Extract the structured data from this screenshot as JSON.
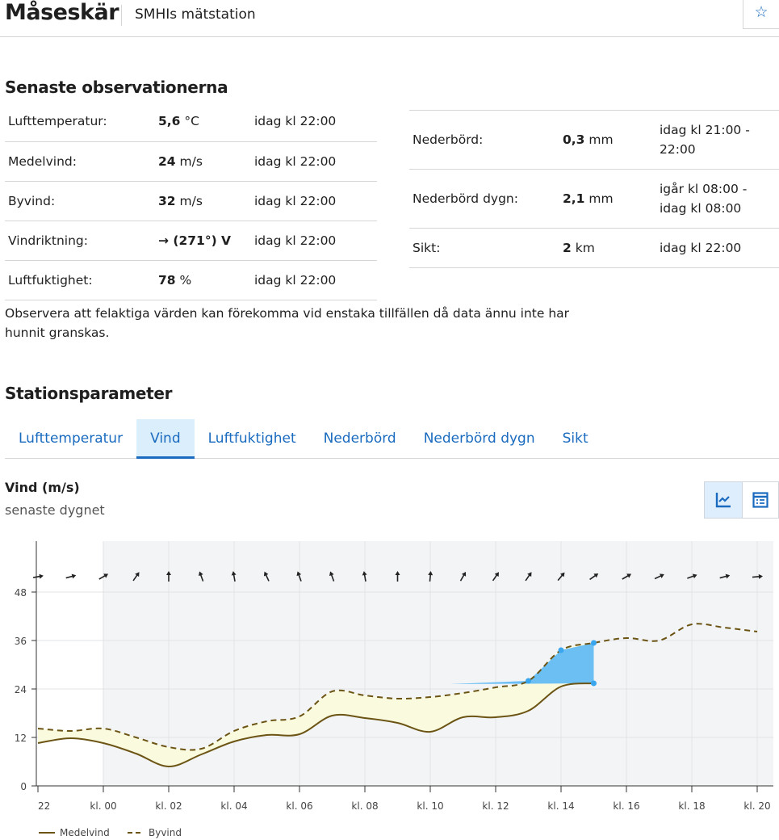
{
  "header": {
    "title": "Måseskär",
    "subtitle": "SMHIs mätstation",
    "favorite_icon": "star-icon"
  },
  "observations": {
    "heading": "Senaste observationerna",
    "left": [
      {
        "label": "Lufttemperatur:",
        "value": "5,6",
        "unit": " °C",
        "time": "idag kl 22:00"
      },
      {
        "label": "Medelvind:",
        "value": "24",
        "unit": " m/s",
        "time": "idag kl 22:00"
      },
      {
        "label": "Byvind:",
        "value": "32",
        "unit": " m/s",
        "time": "idag kl 22:00"
      },
      {
        "label": "Vindriktning:",
        "value": "→ (271°) V",
        "unit": "",
        "time": "idag kl 22:00"
      },
      {
        "label": "Luftfuktighet:",
        "value": "78",
        "unit": " %",
        "time": "idag kl 22:00"
      }
    ],
    "right": [
      {
        "label": "Nederbörd:",
        "value": "0,3",
        "unit": " mm",
        "time": "idag kl 21:00 - 22:00"
      },
      {
        "label": "Nederbörd dygn:",
        "value": "2,1",
        "unit": " mm",
        "time": "igår kl 08:00 - idag kl 08:00"
      },
      {
        "label": "Sikt:",
        "value": "2",
        "unit": " km",
        "time": "idag kl 22:00"
      }
    ],
    "note": "Observera att felaktiga värden kan förekomma vid enstaka tillfällen då data ännu inte har hunnit granskas."
  },
  "station": {
    "heading": "Stationsparameter",
    "tabs": [
      "Lufttemperatur",
      "Vind",
      "Luftfuktighet",
      "Nederbörd",
      "Nederbörd dygn",
      "Sikt"
    ],
    "active_tab": "Vind",
    "chart_title": "Vind (m/s)",
    "chart_subtitle": "senaste dygnet",
    "view_buttons": [
      "chart-view",
      "table-view"
    ]
  },
  "chart_data": {
    "type": "line",
    "title": "Vind (m/s)",
    "x": [
      "22",
      "23",
      "00",
      "01",
      "02",
      "03",
      "04",
      "05",
      "06",
      "07",
      "08",
      "09",
      "10",
      "11",
      "12",
      "13",
      "14",
      "15",
      "16",
      "17",
      "18",
      "19",
      "20"
    ],
    "xticks": [
      "22",
      "kl. 00",
      "kl. 02",
      "kl. 04",
      "kl. 06",
      "kl. 08",
      "kl. 10",
      "kl. 12",
      "kl. 14",
      "kl. 16",
      "kl. 18",
      "kl. 20"
    ],
    "yticks": [
      "0",
      "12",
      "24",
      "36",
      "48"
    ],
    "ylim": [
      0,
      60
    ],
    "series": [
      {
        "name": "Medelvind",
        "style": "solid",
        "color": "#6b5414",
        "values": [
          10.6,
          11.8,
          10.6,
          8,
          4.8,
          7.8,
          11,
          12.6,
          12.8,
          17.4,
          16.8,
          15.6,
          13.4,
          17,
          17,
          18.6,
          24.6,
          25.4,
          null,
          null,
          null,
          null,
          null
        ]
      },
      {
        "name": "Byvind",
        "style": "dashed",
        "color": "#6b5414",
        "values": [
          14.2,
          13.6,
          14.2,
          12,
          9.6,
          9.2,
          13.6,
          16,
          17.2,
          23.4,
          22.4,
          21.6,
          22,
          23,
          24.4,
          26,
          33.6,
          35.4,
          36.6,
          36,
          40,
          39.2,
          38.2
        ]
      }
    ],
    "wind_direction_deg": [
      260,
      255,
      240,
      215,
      180,
      160,
      170,
      155,
      160,
      160,
      170,
      180,
      185,
      210,
      215,
      215,
      220,
      235,
      240,
      245,
      250,
      255,
      265
    ],
    "highlight_color": "#5bb8f5",
    "fill_color": "#fafadf",
    "legend": [
      "Medelvind",
      "Byvind"
    ],
    "legend_position": "bottom-left"
  }
}
